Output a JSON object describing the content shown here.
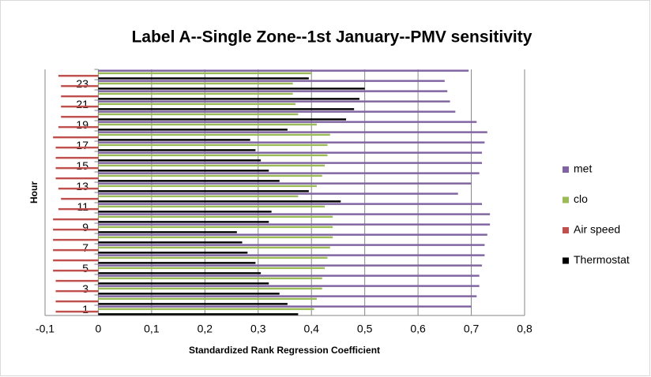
{
  "chart_data": {
    "type": "hbar",
    "title": "Label A--Single Zone--1st January--PMV sensitivity",
    "x_label": "Standardized Rank Regression Coefficient",
    "y_label": "Hour",
    "categories": [
      "1",
      null,
      "3",
      null,
      "5",
      null,
      "7",
      null,
      "9",
      null,
      "11",
      null,
      "13",
      null,
      "15",
      null,
      "17",
      null,
      "19",
      null,
      "21",
      null,
      "23",
      null
    ],
    "series": [
      {
        "name": "met",
        "color": "#8064a2",
        "values": [
          0.7,
          0.71,
          0.715,
          0.715,
          0.72,
          0.725,
          0.725,
          0.73,
          0.735,
          0.735,
          0.72,
          0.675,
          0.7,
          0.715,
          0.72,
          0.72,
          0.725,
          0.73,
          0.71,
          0.67,
          0.66,
          0.655,
          0.65,
          0.695
        ]
      },
      {
        "name": "clo",
        "color": "#9bbb59",
        "values": [
          0.405,
          0.41,
          0.42,
          0.42,
          0.425,
          0.43,
          0.435,
          0.44,
          0.44,
          0.44,
          0.425,
          0.375,
          0.41,
          0.42,
          0.425,
          0.43,
          0.43,
          0.435,
          0.41,
          0.375,
          0.37,
          0.365,
          0.365,
          0.4
        ]
      },
      {
        "name": "Air speed",
        "color": "#c0504d",
        "values": [
          -0.08,
          -0.08,
          -0.08,
          -0.08,
          -0.085,
          -0.085,
          -0.085,
          -0.085,
          -0.085,
          -0.085,
          -0.075,
          -0.07,
          -0.075,
          -0.08,
          -0.08,
          -0.08,
          -0.08,
          -0.085,
          -0.075,
          -0.07,
          -0.07,
          -0.07,
          -0.07,
          -0.075
        ]
      },
      {
        "name": "Thermostat",
        "color": "#000000",
        "values": [
          0.375,
          0.355,
          0.34,
          0.32,
          0.305,
          0.295,
          0.28,
          0.27,
          0.26,
          0.32,
          0.325,
          0.455,
          0.395,
          0.34,
          0.32,
          0.305,
          0.295,
          0.285,
          0.355,
          0.465,
          0.48,
          0.49,
          0.5,
          0.395
        ]
      }
    ],
    "xlim": [
      -0.1,
      0.8
    ],
    "xticks": [
      {
        "value": -0.1,
        "label": "-0,1"
      },
      0,
      {
        "value": 0.1,
        "label": "0,1"
      },
      {
        "value": 0.2,
        "label": "0,2"
      },
      {
        "value": 0.3,
        "label": "0,3"
      },
      {
        "value": 0.4,
        "label": "0,4"
      },
      {
        "value": 0.5,
        "label": "0,5"
      },
      {
        "value": 0.6,
        "label": "0,6"
      },
      {
        "value": 0.7,
        "label": "0,7"
      },
      {
        "value": 0.8,
        "label": "0,8"
      }
    ],
    "grid": true,
    "legend": "right"
  }
}
